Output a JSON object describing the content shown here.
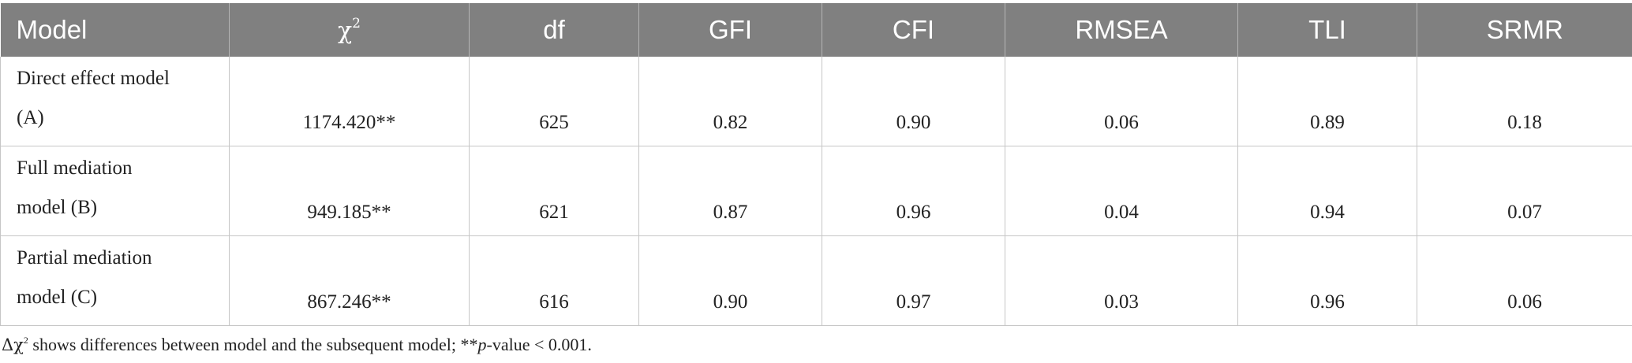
{
  "table": {
    "headers": {
      "model": "Model",
      "chi_symbol": "χ",
      "chi_sup": "2",
      "df": "df",
      "gfi": "GFI",
      "cfi": "CFI",
      "rmsea": "RMSEA",
      "tli": "TLI",
      "srmr": "SRMR"
    },
    "rows": [
      {
        "model_line1": "Direct effect model",
        "model_line2": "(A)",
        "chi2": "1174.420**",
        "df": "625",
        "gfi": "0.82",
        "cfi": "0.90",
        "rmsea": "0.06",
        "tli": "0.89",
        "srmr": "0.18"
      },
      {
        "model_line1": "Full mediation",
        "model_line2": "model (B)",
        "chi2": "949.185**",
        "df": "621",
        "gfi": "0.87",
        "cfi": "0.96",
        "rmsea": "0.04",
        "tli": "0.94",
        "srmr": "0.07"
      },
      {
        "model_line1": "Partial mediation",
        "model_line2": "model (C)",
        "chi2": "867.246**",
        "df": "616",
        "gfi": "0.90",
        "cfi": "0.97",
        "rmsea": "0.03",
        "tli": "0.96",
        "srmr": "0.06"
      }
    ]
  },
  "footnote": {
    "delta_chi": "Δχ",
    "sup": "2",
    "text1": " shows differences between model and the subsequent model; **",
    "p": "p",
    "text2": "-value < 0.001."
  }
}
